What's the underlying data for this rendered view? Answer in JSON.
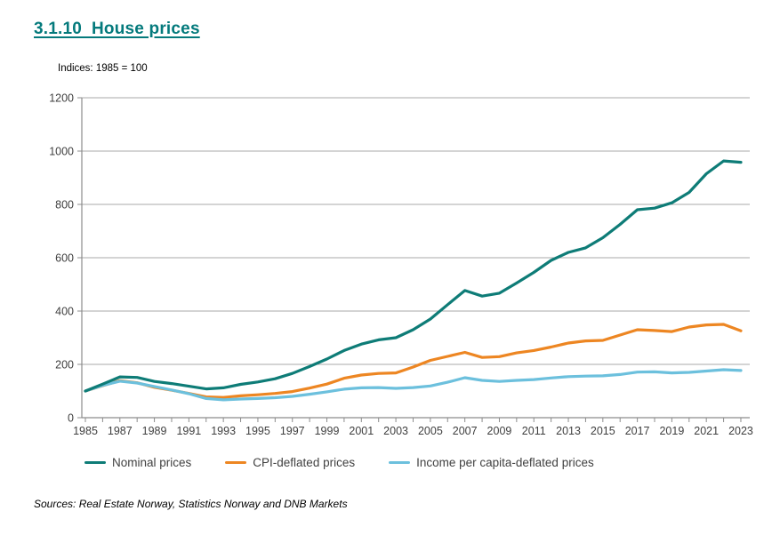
{
  "page": {
    "title": "3.1.10  House prices",
    "subtitle": "Indices: 1985 = 100",
    "source_note": "Sources: Real Estate Norway, Statistics Norway and DNB Markets"
  },
  "colors": {
    "title_teal": "#047a7c",
    "gridline": "#a8a8a8",
    "axis": "#8c8c8c",
    "tick_label": "#3f3f3f",
    "legend_text": "#414141"
  },
  "chart_data": {
    "type": "line",
    "title": "3.1.10 House prices",
    "subtitle": "Indices: 1985 = 100",
    "x": [
      1985,
      1986,
      1987,
      1988,
      1989,
      1990,
      1991,
      1992,
      1993,
      1994,
      1995,
      1996,
      1997,
      1998,
      1999,
      2000,
      2001,
      2002,
      2003,
      2004,
      2005,
      2006,
      2007,
      2008,
      2009,
      2010,
      2011,
      2012,
      2013,
      2014,
      2015,
      2016,
      2017,
      2018,
      2019,
      2020,
      2021,
      2022,
      2023
    ],
    "x_tick_labels": [
      "1985",
      "1987",
      "1989",
      "1991",
      "1993",
      "1995",
      "1997",
      "1999",
      "2001",
      "2003",
      "2005",
      "2007",
      "2009",
      "2011",
      "2013",
      "2015",
      "2017",
      "2019",
      "2021",
      "2023"
    ],
    "y_ticks": [
      0,
      200,
      400,
      600,
      800,
      1000,
      1200
    ],
    "ylim": [
      0,
      1200
    ],
    "grid": "horizontal",
    "legend_position": "bottom",
    "z_order": [
      1,
      2,
      0
    ],
    "series": [
      {
        "name": "Nominal prices",
        "color": "#0e7c77",
        "values": [
          100,
          126,
          153,
          151,
          136,
          128,
          118,
          108,
          112,
          125,
          134,
          146,
          166,
          192,
          220,
          252,
          276,
          292,
          300,
          330,
          370,
          424,
          477,
          456,
          467,
          505,
          545,
          590,
          620,
          637,
          675,
          725,
          780,
          786,
          806,
          845,
          915,
          963,
          958
        ]
      },
      {
        "name": "CPI-deflated prices",
        "color": "#ed8622",
        "values": [
          100,
          120,
          139,
          131,
          114,
          103,
          91,
          78,
          76,
          82,
          86,
          91,
          98,
          111,
          126,
          148,
          160,
          166,
          168,
          190,
          215,
          230,
          245,
          226,
          229,
          243,
          252,
          265,
          280,
          288,
          290,
          310,
          330,
          327,
          323,
          340,
          348,
          350,
          326
        ]
      },
      {
        "name": "Income per capita-deflated prices",
        "color": "#6cc0dd",
        "values": [
          100,
          121,
          137,
          130,
          117,
          104,
          90,
          72,
          67,
          70,
          72,
          75,
          80,
          88,
          97,
          107,
          112,
          113,
          110,
          113,
          119,
          133,
          150,
          140,
          136,
          140,
          143,
          149,
          154,
          156,
          157,
          162,
          171,
          172,
          168,
          170,
          175,
          180,
          177
        ]
      }
    ]
  }
}
